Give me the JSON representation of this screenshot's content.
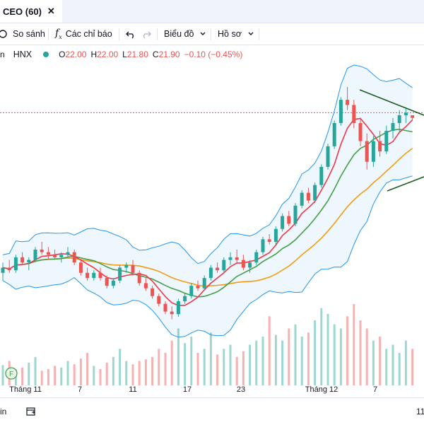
{
  "tab": {
    "title": "CEO (60)",
    "close": "✕"
  },
  "toolbar": {
    "compare": "So sánh",
    "indicators": "Các chỉ báo",
    "chart_type": "Biểu đồ",
    "profile": "Hồ sơ",
    "undo_icon": "undo-icon",
    "redo_icon": "redo-icon"
  },
  "legend": {
    "partial_label": "n",
    "exchange": "HNX",
    "open_key": "O",
    "open": "22.00",
    "high_key": "H",
    "high": "22.00",
    "low_key": "L",
    "low": "21.80",
    "close_key": "C",
    "close": "21.90",
    "change": "−0.10 (−0.45%)"
  },
  "x_axis_labels": [
    {
      "text": "Tháng 11",
      "x": 36
    },
    {
      "text": "7",
      "x": 113
    },
    {
      "text": "11",
      "x": 188
    },
    {
      "text": "17",
      "x": 265
    },
    {
      "text": "23",
      "x": 341
    },
    {
      "text": "Tháng 12",
      "x": 455
    },
    {
      "text": "7",
      "x": 531
    }
  ],
  "bottom": {
    "left": "in",
    "right": "11",
    "calendar_icon": "calendar-range-icon"
  },
  "colors": {
    "up": "#26a69a",
    "down": "#ef5350",
    "ma_fast": "#f23645",
    "ma_mid": "#43a047",
    "ma_slow": "#f39c12",
    "band": "#2196f3"
  },
  "chart_data": {
    "type": "candlestick",
    "symbol": "CEO",
    "interval": "60",
    "exchange": "HNX",
    "last_bar": {
      "open": 22.0,
      "high": 22.0,
      "low": 21.8,
      "close": 21.9,
      "change": -0.1,
      "change_pct": -0.45
    },
    "candles": [
      [
        15.9,
        16.3,
        15.6,
        16.1
      ],
      [
        16.1,
        16.4,
        15.9,
        16.0
      ],
      [
        16.0,
        16.6,
        15.9,
        16.5
      ],
      [
        16.5,
        16.7,
        16.2,
        16.3
      ],
      [
        16.3,
        16.5,
        16.0,
        16.4
      ],
      [
        16.4,
        16.9,
        16.3,
        16.8
      ],
      [
        16.8,
        17.1,
        16.6,
        16.7
      ],
      [
        16.7,
        16.9,
        16.4,
        16.6
      ],
      [
        16.6,
        16.8,
        16.4,
        16.5
      ],
      [
        16.5,
        16.7,
        16.3,
        16.6
      ],
      [
        16.6,
        16.9,
        16.5,
        16.7
      ],
      [
        16.7,
        16.8,
        16.2,
        16.3
      ],
      [
        16.3,
        16.4,
        15.8,
        15.9
      ],
      [
        15.9,
        16.1,
        15.6,
        15.7
      ],
      [
        15.7,
        16.0,
        15.6,
        15.9
      ],
      [
        15.9,
        16.1,
        15.6,
        15.7
      ],
      [
        15.7,
        15.8,
        15.3,
        15.4
      ],
      [
        15.4,
        15.7,
        15.3,
        15.6
      ],
      [
        15.6,
        16.2,
        15.5,
        16.1
      ],
      [
        16.1,
        16.3,
        15.9,
        16.2
      ],
      [
        16.2,
        16.4,
        15.8,
        15.9
      ],
      [
        15.9,
        16.0,
        15.4,
        15.5
      ],
      [
        15.5,
        15.7,
        15.2,
        15.3
      ],
      [
        15.3,
        15.4,
        14.9,
        15.0
      ],
      [
        15.0,
        15.1,
        14.6,
        14.7
      ],
      [
        14.7,
        14.8,
        14.3,
        14.4
      ],
      [
        14.4,
        14.6,
        14.1,
        14.3
      ],
      [
        14.3,
        14.9,
        14.2,
        14.8
      ],
      [
        14.8,
        15.1,
        14.7,
        15.0
      ],
      [
        15.0,
        15.5,
        14.9,
        15.4
      ],
      [
        15.4,
        15.6,
        15.2,
        15.3
      ],
      [
        15.3,
        15.8,
        15.2,
        15.7
      ],
      [
        15.7,
        16.2,
        15.6,
        16.1
      ],
      [
        16.1,
        16.3,
        15.9,
        16.0
      ],
      [
        16.0,
        16.5,
        15.9,
        16.4
      ],
      [
        16.4,
        16.7,
        16.2,
        16.5
      ],
      [
        16.5,
        16.8,
        16.3,
        16.4
      ],
      [
        16.4,
        16.6,
        16.0,
        16.1
      ],
      [
        16.1,
        16.4,
        15.9,
        16.3
      ],
      [
        16.3,
        16.8,
        16.2,
        16.7
      ],
      [
        16.7,
        17.3,
        16.6,
        17.2
      ],
      [
        17.2,
        17.4,
        17.0,
        17.1
      ],
      [
        17.1,
        17.7,
        17.0,
        17.6
      ],
      [
        17.6,
        18.2,
        17.5,
        18.1
      ],
      [
        18.1,
        18.3,
        17.7,
        17.8
      ],
      [
        17.8,
        18.6,
        17.7,
        18.5
      ],
      [
        18.5,
        19.1,
        18.4,
        19.0
      ],
      [
        19.0,
        19.2,
        18.6,
        18.7
      ],
      [
        18.7,
        19.4,
        18.6,
        19.3
      ],
      [
        19.3,
        20.1,
        19.2,
        20.0
      ],
      [
        20.0,
        20.9,
        19.9,
        20.8
      ],
      [
        20.8,
        21.8,
        20.7,
        21.7
      ],
      [
        21.7,
        22.7,
        21.6,
        22.6
      ],
      [
        22.6,
        23.1,
        22.2,
        22.4
      ],
      [
        22.4,
        22.6,
        21.5,
        21.7
      ],
      [
        21.7,
        21.9,
        20.8,
        21.0
      ],
      [
        21.0,
        21.3,
        19.9,
        20.2
      ],
      [
        20.2,
        21.2,
        20.0,
        21.0
      ],
      [
        21.0,
        21.4,
        20.4,
        20.6
      ],
      [
        20.6,
        21.6,
        20.5,
        21.4
      ],
      [
        21.4,
        21.9,
        21.1,
        21.7
      ],
      [
        21.7,
        22.2,
        21.3,
        22.0
      ],
      [
        22.0,
        22.3,
        21.7,
        22.1
      ],
      [
        22.0,
        22.0,
        21.8,
        21.9
      ]
    ],
    "volume_pattern": [
      0.25,
      0.3,
      0.2,
      0.22,
      0.28,
      0.35,
      0.18,
      0.2,
      0.24,
      0.22,
      0.3,
      0.26,
      0.33,
      0.4,
      0.24,
      0.2,
      0.28,
      0.35,
      0.45,
      0.3,
      0.26,
      0.3,
      0.32,
      0.35,
      0.45,
      0.4,
      0.55,
      0.7,
      0.52,
      0.6,
      0.4,
      0.45,
      0.65,
      0.38,
      0.45,
      0.5,
      0.35,
      0.42,
      0.5,
      0.55,
      0.6,
      0.85,
      0.62,
      0.55,
      0.7,
      0.75,
      0.6,
      0.65,
      0.8,
      0.95,
      0.88,
      0.75,
      0.7,
      0.85,
      1.0,
      0.8,
      0.7,
      0.55,
      0.6,
      0.45,
      0.5,
      0.4,
      0.55,
      0.45
    ],
    "reference_line": 22.1,
    "indicators": [
      "MA fast (red)",
      "MA mid (green)",
      "MA slow (orange)",
      "Bollinger Bands (blue)"
    ]
  }
}
